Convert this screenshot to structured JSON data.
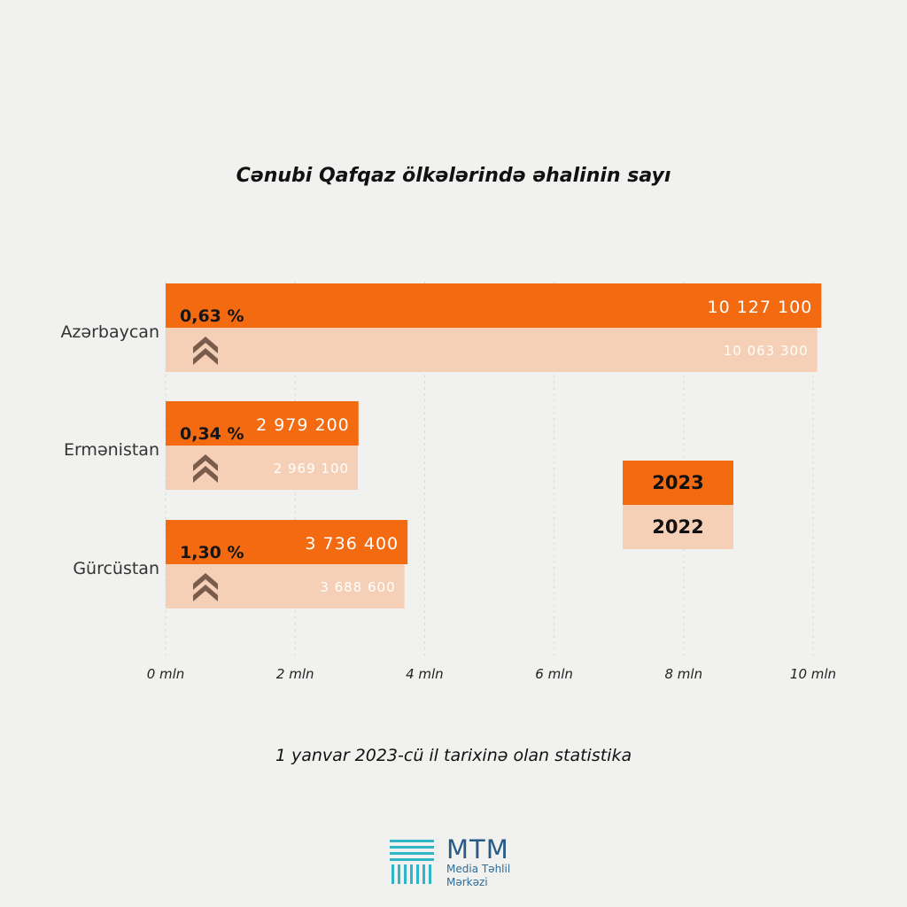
{
  "title": "Cənubi Qafqaz ölkələrində əhalinin sayı",
  "subtitle": "1 yanvar 2023-cü il tarixinə olan statistika",
  "colors": {
    "series_2023": "#f36a10",
    "series_2022": "#f6d0b6",
    "arrow": "#7a5c4c",
    "grid": "#d9d9d9"
  },
  "legend": [
    {
      "label": "2023",
      "color": "#f36a10"
    },
    {
      "label": "2022",
      "color": "#f6d0b6"
    }
  ],
  "logo": {
    "name": "MTM",
    "line1": "Media Təhlil",
    "line2": "Mərkəzi"
  },
  "chart_data": {
    "type": "bar",
    "orientation": "horizontal",
    "categories": [
      "Azərbaycan",
      "Ermənistan",
      "Gürcüstan"
    ],
    "series": [
      {
        "name": "2023",
        "values": [
          10127100,
          2979200,
          3736400
        ],
        "labels": [
          "10 127 100",
          "2 979 200",
          "3 736 400"
        ]
      },
      {
        "name": "2022",
        "values": [
          10063300,
          2969100,
          3688600
        ],
        "labels": [
          "10 063 300",
          "2 969 100",
          "3 688 600"
        ]
      }
    ],
    "growth_labels": [
      "0,63 %",
      "0,34 %",
      "1,30 %"
    ],
    "x_ticks": [
      0,
      2000000,
      4000000,
      6000000,
      8000000,
      10000000
    ],
    "x_tick_labels": [
      "0 mln",
      "2 mln",
      "4 mln",
      "6 mln",
      "8 mln",
      "10 mln"
    ],
    "xlim": [
      0,
      10000000
    ],
    "grid": true
  }
}
